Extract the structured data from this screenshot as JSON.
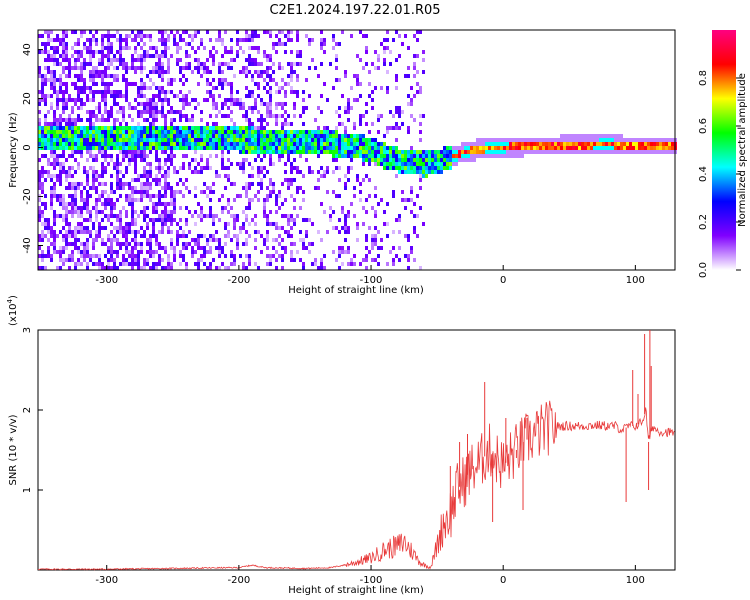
{
  "title": "C2E1.2024.197.22.01.R05",
  "chart_data": [
    {
      "type": "heatmap",
      "xlabel": "Height of straight line (km)",
      "ylabel": "Frequency (Hz)",
      "xlim": [
        -352,
        130
      ],
      "ylim": [
        -50,
        48
      ],
      "xticks": [
        -300,
        -200,
        -100,
        0,
        100
      ],
      "yticks": [
        -40,
        -20,
        0,
        20,
        40
      ],
      "colorbar": {
        "label": "Normalized spectral amplitude",
        "range": [
          0,
          1
        ],
        "ticks": [
          "0.0",
          "0.2",
          "0.4",
          "0.6",
          "0.8"
        ],
        "colors": [
          "#ffffff",
          "#8000ff",
          "#0000ff",
          "#00ffff",
          "#00ff00",
          "#ffff00",
          "#ff0000",
          "#ff0080"
        ]
      },
      "ridge": {
        "x": [
          -350,
          -250,
          -200,
          -150,
          -120,
          -100,
          -90,
          -75,
          -60,
          -50,
          -40,
          -30,
          -20,
          0,
          20,
          40,
          80,
          90,
          100,
          130
        ],
        "y": [
          4,
          4,
          4,
          3,
          2,
          0,
          -3,
          -5,
          -6,
          -5,
          -3,
          -1,
          0,
          1,
          1.5,
          1.5,
          2,
          1.5,
          1.5,
          1.5
        ]
      }
    },
    {
      "type": "line",
      "xlabel": "Height of straight line (km)",
      "ylabel": "SNR (10 * v/v)",
      "yscale_label": "(x10",
      "yscale_exp": "4",
      "xlim": [
        -352,
        130
      ],
      "ylim": [
        0,
        30000
      ],
      "xticks": [
        -300,
        -200,
        -100,
        0,
        100
      ],
      "yticks": [
        1,
        2,
        3
      ],
      "color": "#e83a3a",
      "series": [
        {
          "x": [
            -350,
            -300,
            -250,
            -200,
            -190,
            -180,
            -150,
            -130,
            -115,
            -100,
            -90,
            -80,
            -75,
            -70,
            -62,
            -55,
            -50,
            -45,
            -40,
            -35,
            -30,
            -25,
            -20,
            -15,
            -10,
            -5,
            0,
            5,
            10,
            15,
            20,
            25,
            30,
            35,
            40,
            45,
            50,
            60,
            70,
            80,
            85,
            90,
            95,
            100,
            105,
            108,
            110,
            113,
            116,
            120,
            125,
            130
          ],
          "y": [
            100,
            100,
            200,
            300,
            600,
            300,
            200,
            300,
            800,
            1500,
            2500,
            3000,
            3500,
            2500,
            800,
            300,
            3000,
            6000,
            7000,
            10000,
            11000,
            12500,
            13000,
            14000,
            15000,
            14000,
            13000,
            14000,
            15000,
            16000,
            16500,
            17000,
            17500,
            17800,
            17900,
            18000,
            18000,
            18000,
            18100,
            18000,
            18000,
            17500,
            18000,
            18000,
            18500,
            20000,
            16000,
            18000,
            17500,
            17300,
            17200,
            17200
          ]
        }
      ],
      "spikes": [
        {
          "x": -48,
          "y": 5000
        },
        {
          "x": -40,
          "y": 13000
        },
        {
          "x": -33,
          "y": 16000
        },
        {
          "x": -27,
          "y": 17000
        },
        {
          "x": -14,
          "y": 23500
        },
        {
          "x": -8,
          "y": 6000
        },
        {
          "x": 2,
          "y": 19000
        },
        {
          "x": 10,
          "y": 14000
        },
        {
          "x": 15,
          "y": 7500
        },
        {
          "x": 18,
          "y": 19000
        },
        {
          "x": 93,
          "y": 8500
        },
        {
          "x": 98,
          "y": 25000
        },
        {
          "x": 102,
          "y": 22000
        },
        {
          "x": 107,
          "y": 29500
        },
        {
          "x": 110,
          "y": 10000
        },
        {
          "x": 112,
          "y": 25500
        },
        {
          "x": 111,
          "y": 30000
        }
      ]
    }
  ]
}
